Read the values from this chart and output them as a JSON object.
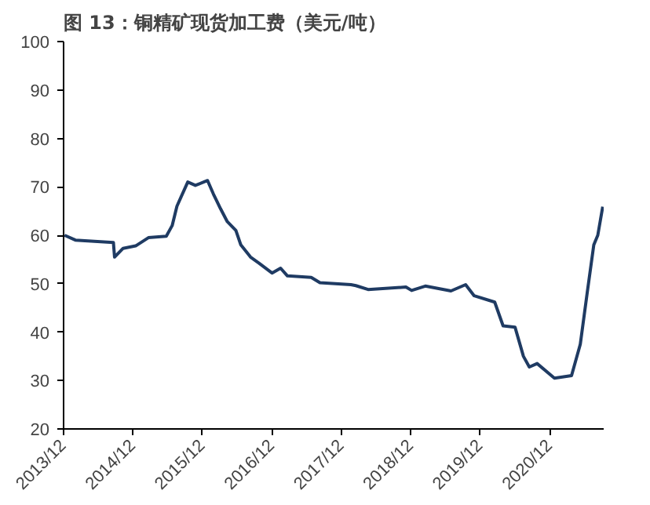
{
  "chart_data": {
    "type": "line",
    "title": "图 13：铜精矿现货加工费（美元/吨）",
    "x": [
      "2013-12-06",
      "2014-02-01",
      "2014-08-20",
      "2014-08-26",
      "2014-10-10",
      "2014-12-15",
      "2015-02-20",
      "2015-05-25",
      "2015-06-25",
      "2015-07-20",
      "2015-09-15",
      "2015-10-25",
      "2015-12-28",
      "2016-01-28",
      "2016-03-05",
      "2016-04-10",
      "2016-05-25",
      "2016-06-20",
      "2016-08-10",
      "2016-09-25",
      "2016-12-01",
      "2017-01-15",
      "2017-02-20",
      "2017-06-25",
      "2017-08-10",
      "2018-01-20",
      "2018-02-15",
      "2018-04-20",
      "2018-11-05",
      "2018-12-05",
      "2019-02-15",
      "2019-06-30",
      "2019-09-15",
      "2019-10-30",
      "2020-02-15",
      "2020-03-30",
      "2020-06-01",
      "2020-07-15",
      "2020-08-15",
      "2020-09-25",
      "2020-12-25",
      "2021-03-25",
      "2021-05-10",
      "2021-06-15",
      "2021-07-20",
      "2021-08-10",
      "2021-09-05"
    ],
    "series": [
      {
        "color": "#1f3b63",
        "values": [
          60,
          59,
          58.5,
          55.5,
          57.3,
          57.8,
          59.5,
          59.8,
          62,
          66,
          71,
          70.3,
          71.3,
          68.5,
          65.5,
          62.8,
          61,
          58,
          55.5,
          54.2,
          52.2,
          53.2,
          51.6,
          51.3,
          50.2,
          49.8,
          49.6,
          48.8,
          49.3,
          48.6,
          49.5,
          48.5,
          49.8,
          47.5,
          46.2,
          41.3,
          41,
          35,
          32.8,
          33.5,
          30.5,
          31,
          37.5,
          48,
          58,
          60,
          65.9
        ]
      }
    ],
    "xlim": [
      "2013-12-01",
      "2021-09-10"
    ],
    "ylim": [
      20,
      100
    ],
    "yticks": [
      20,
      30,
      40,
      50,
      60,
      70,
      80,
      90,
      100
    ],
    "xticks": [
      {
        "value": "2013-12-01",
        "label": "2013/12"
      },
      {
        "value": "2014-12-01",
        "label": "2014/12"
      },
      {
        "value": "2015-12-01",
        "label": "2015/12"
      },
      {
        "value": "2016-12-01",
        "label": "2016/12"
      },
      {
        "value": "2017-12-01",
        "label": "2017/12"
      },
      {
        "value": "2018-12-01",
        "label": "2018/12"
      },
      {
        "value": "2019-12-01",
        "label": "2019/12"
      },
      {
        "value": "2020-12-01",
        "label": "2020/12"
      }
    ],
    "grid": false,
    "marker": "none",
    "line_style": "solid"
  }
}
